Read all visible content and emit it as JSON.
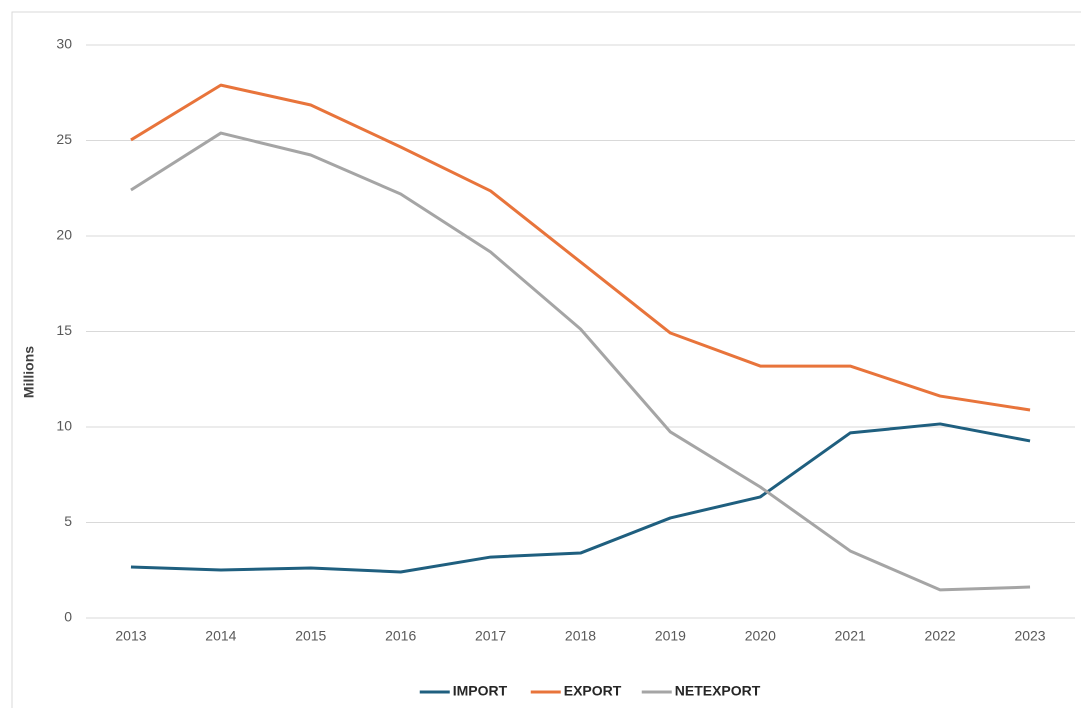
{
  "chart_data": {
    "type": "line",
    "y_label": "Millions",
    "categories": [
      "2013",
      "2014",
      "2015",
      "2016",
      "2017",
      "2018",
      "2019",
      "2020",
      "2021",
      "2022",
      "2023"
    ],
    "series": [
      {
        "name": "IMPORT",
        "color": "#1f5f7f",
        "values": [
          2.67,
          2.51,
          2.62,
          2.41,
          3.19,
          3.4,
          5.24,
          6.34,
          9.69,
          10.16,
          9.27
        ]
      },
      {
        "name": "EXPORT",
        "color": "#e8743b",
        "values": [
          25.03,
          27.9,
          26.86,
          24.66,
          22.36,
          18.64,
          14.92,
          13.19,
          13.19,
          11.62,
          10.89
        ]
      },
      {
        "name": "NETEXPORT",
        "color": "#a5a5a5",
        "values": [
          22.41,
          25.39,
          24.24,
          22.2,
          19.16,
          15.13,
          9.74,
          6.86,
          3.51,
          1.47,
          1.62
        ]
      }
    ],
    "ylim": [
      0,
      30
    ],
    "yticks": [
      0,
      5,
      10,
      15,
      20,
      25,
      30
    ],
    "grid": true,
    "legend": "bottom"
  }
}
